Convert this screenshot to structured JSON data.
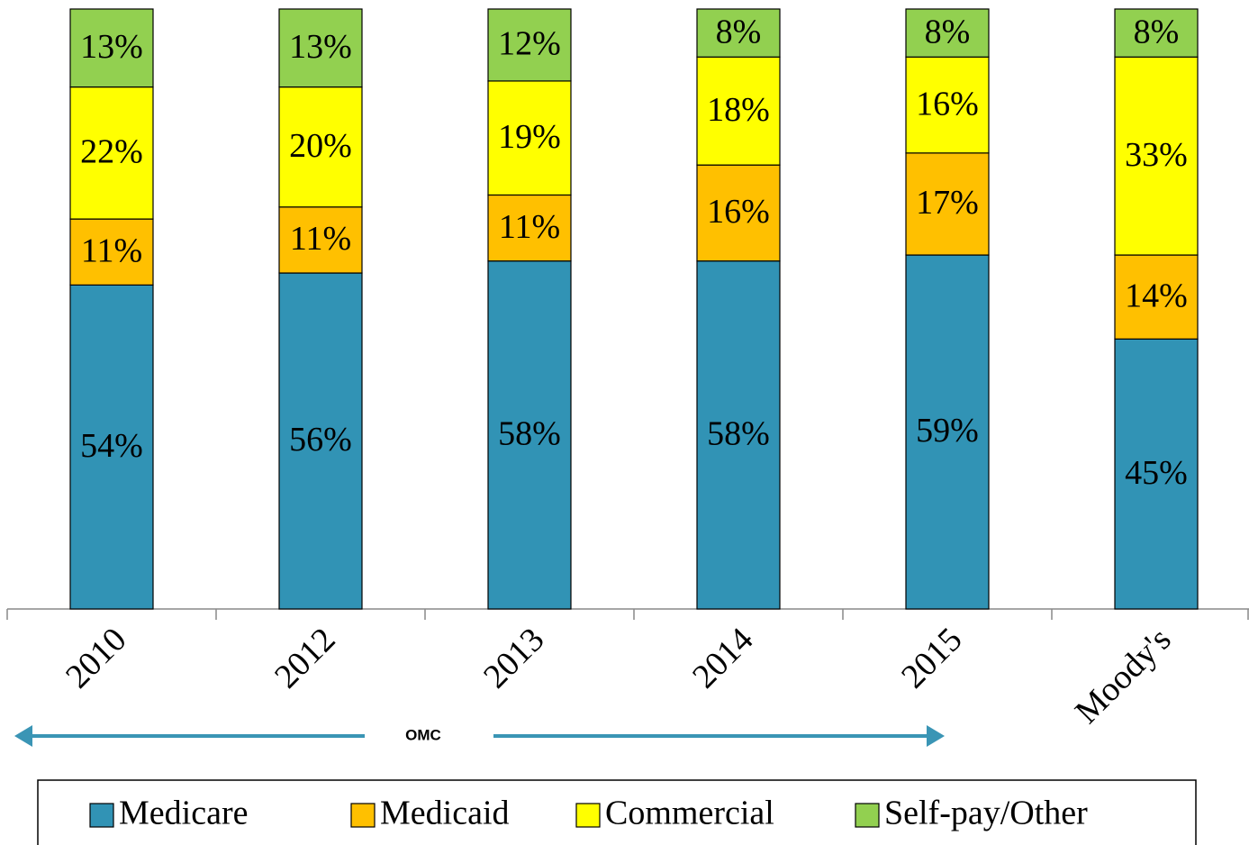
{
  "chart_data": {
    "type": "stacked_bar",
    "categories": [
      "2010",
      "2012",
      "2013",
      "2014",
      "2015",
      "Moody's"
    ],
    "series": [
      {
        "name": "Medicare",
        "color": "#3193b5",
        "values": [
          54,
          56,
          58,
          58,
          59,
          45
        ],
        "value_labels": [
          "54%",
          "56%",
          "58%",
          "58%",
          "59%",
          "45%"
        ]
      },
      {
        "name": "Medicaid",
        "color": "#ffc000",
        "values": [
          11,
          11,
          11,
          16,
          17,
          14
        ],
        "value_labels": [
          "11%",
          "11%",
          "11%",
          "16%",
          "17%",
          "14%"
        ]
      },
      {
        "name": "Commercial",
        "color": "#ffff00",
        "values": [
          22,
          20,
          19,
          18,
          16,
          33
        ],
        "value_labels": [
          "22%",
          "20%",
          "19%",
          "18%",
          "16%",
          "33%"
        ]
      },
      {
        "name": "Self-pay/Other",
        "color": "#92d050",
        "values": [
          13,
          13,
          12,
          8,
          8,
          8
        ],
        "value_labels": [
          "13%",
          "13%",
          "12%",
          "8%",
          "8%",
          "8%"
        ]
      }
    ],
    "ylim": [
      0,
      100
    ],
    "annotation": "OMC",
    "legend": "bottom"
  }
}
